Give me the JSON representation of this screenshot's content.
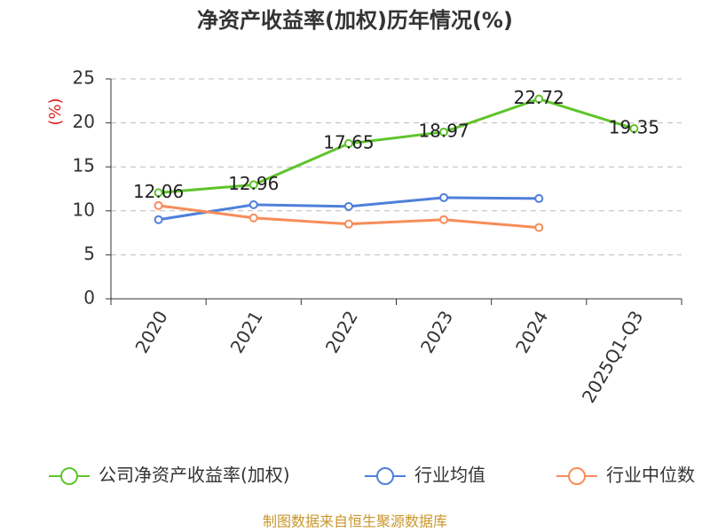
{
  "chart_data": {
    "type": "line",
    "title": "净资产收益率(加权)历年情况(%)",
    "y_label": "(%)",
    "source": "制图数据来自恒生聚源数据库",
    "categories": [
      "2020",
      "2021",
      "2022",
      "2023",
      "2024",
      "2025Q1-Q3"
    ],
    "series": [
      {
        "name": "公司净资产收益率(加权)",
        "color": "#5ec42a",
        "values": [
          12.06,
          12.96,
          17.65,
          18.97,
          22.72,
          19.35
        ],
        "data_labels": true
      },
      {
        "name": "行业均值",
        "color": "#4f7fdb",
        "values": [
          9.0,
          10.7,
          10.5,
          11.5,
          11.4,
          null
        ]
      },
      {
        "name": "行业中位数",
        "color": "#f78c5a",
        "values": [
          10.6,
          9.2,
          8.5,
          9.0,
          8.1,
          null
        ]
      }
    ],
    "ylim": [
      0,
      25
    ],
    "yticks": [
      0,
      5,
      10,
      15,
      20,
      25
    ],
    "grid": true
  }
}
